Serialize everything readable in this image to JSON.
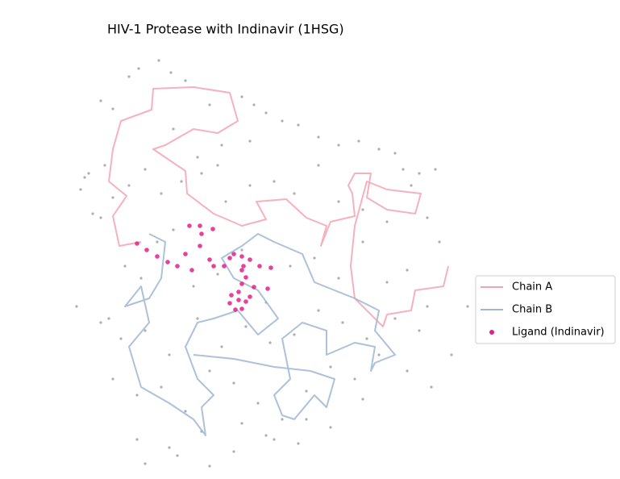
{
  "chart_data": {
    "type": "scatter",
    "title": "HIV-1 Protease with Indinavir (1HSG)",
    "xlim": [
      80,
      590
    ],
    "ylim": [
      10,
      540
    ],
    "legend": "right",
    "atoms": {
      "color": "#8c8c8c",
      "x": [
        197,
        172,
        212,
        140,
        110,
        125,
        160,
        230,
        260,
        300,
        315,
        330,
        350,
        370,
        395,
        420,
        445,
        470,
        490,
        500,
        520,
        540,
        105,
        100,
        130,
        115,
        125,
        140,
        160,
        180,
        200,
        225,
        250,
        280,
        310,
        340,
        365,
        395,
        420,
        450,
        480,
        510,
        530,
        545,
        95,
        135,
        155,
        175,
        195,
        215,
        240,
        270,
        300,
        330,
        360,
        390,
        420,
        450,
        480,
        505,
        530,
        125,
        150,
        180,
        210,
        245,
        275,
        305,
        335,
        365,
        395,
        425,
        455,
        490,
        520,
        560,
        580,
        140,
        170,
        200,
        230,
        260,
        290,
        320,
        350,
        380,
        410,
        440,
        470,
        505,
        535,
        170,
        210,
        250,
        290,
        330,
        370,
        410,
        450,
        180,
        220,
        260,
        300,
        340,
        380,
        275,
        270,
        215,
        245,
        310
      ],
      "y": [
        525,
        515,
        510,
        465,
        385,
        475,
        505,
        500,
        470,
        480,
        470,
        460,
        450,
        445,
        430,
        420,
        425,
        415,
        410,
        390,
        385,
        390,
        380,
        365,
        395,
        335,
        330,
        355,
        370,
        390,
        360,
        375,
        385,
        350,
        370,
        375,
        360,
        395,
        350,
        340,
        325,
        370,
        330,
        300,
        220,
        205,
        270,
        255,
        300,
        315,
        245,
        260,
        290,
        225,
        270,
        280,
        255,
        300,
        250,
        265,
        220,
        200,
        180,
        190,
        160,
        205,
        170,
        195,
        175,
        185,
        215,
        200,
        180,
        205,
        190,
        160,
        220,
        130,
        110,
        120,
        90,
        140,
        125,
        100,
        80,
        115,
        145,
        130,
        160,
        140,
        120,
        55,
        45,
        65,
        40,
        60,
        50,
        70,
        105,
        25,
        35,
        22,
        75,
        55,
        80,
        420,
        395,
        440,
        405,
        425
      ]
    },
    "series": [
      {
        "name": "Chain A",
        "color": "#f4a3b3",
        "style": "line",
        "x": [
          175,
          148,
          140,
          157,
          135,
          140,
          150,
          188,
          190,
          240,
          285,
          295,
          270,
          240,
          205,
          190,
          230,
          232,
          265,
          300,
          330,
          318,
          355,
          380,
          405,
          398,
          410,
          440,
          437,
          432,
          440,
          460,
          455,
          480,
          515,
          522,
          480,
          455,
          440,
          435,
          440,
          475,
          480,
          510,
          515,
          550,
          556
        ],
        "y": [
          300,
          295,
          332,
          357,
          375,
          415,
          450,
          464,
          490,
          492,
          485,
          450,
          435,
          440,
          420,
          415,
          388,
          360,
          335,
          320,
          328,
          350,
          353,
          330,
          320,
          295,
          325,
          332,
          360,
          370,
          385,
          385,
          355,
          340,
          335,
          360,
          365,
          375,
          320,
          270,
          230,
          195,
          210,
          215,
          240,
          245,
          270
        ]
      },
      {
        "name": "Chain B",
        "color": "#9fb6d3",
        "style": "line",
        "x": [
          185,
          205,
          200,
          185,
          155,
          175,
          185,
          160,
          175,
          210,
          240,
          255,
          250,
          265,
          245,
          230,
          245,
          265,
          295,
          320,
          345,
          320,
          290,
          275,
          300,
          320,
          340,
          375,
          390,
          440,
          470,
          465,
          490,
          465,
          460,
          465,
          440,
          405,
          405,
          375,
          350,
          360,
          340,
          350,
          365,
          390,
          405,
          415,
          385,
          340,
          290,
          240
        ],
        "y": [
          310,
          300,
          255,
          230,
          220,
          245,
          200,
          170,
          120,
          100,
          80,
          60,
          95,
          110,
          130,
          170,
          200,
          205,
          215,
          185,
          205,
          240,
          255,
          280,
          295,
          310,
          300,
          285,
          250,
          230,
          215,
          190,
          160,
          150,
          140,
          170,
          175,
          160,
          190,
          200,
          180,
          130,
          110,
          85,
          80,
          110,
          95,
          130,
          140,
          145,
          155,
          160
        ]
      },
      {
        "name": "Ligand (Indinavir)",
        "color": "#e0218a",
        "style": "scatter",
        "x": [
          170,
          182,
          195,
          208,
          230,
          238,
          248,
          250,
          248,
          264,
          235,
          260,
          278,
          285,
          290,
          300,
          310,
          302,
          322,
          336,
          300,
          305,
          300,
          315,
          332,
          296,
          287,
          296,
          285,
          292,
          300,
          310,
          305,
          220,
          265
        ],
        "y": [
          298,
          290,
          282,
          275,
          285,
          265,
          295,
          310,
          320,
          316,
          320,
          278,
          270,
          280,
          285,
          282,
          278,
          270,
          270,
          268,
          265,
          256,
          248,
          244,
          242,
          238,
          234,
          228,
          224,
          216,
          217,
          232,
          226,
          270,
          270
        ]
      }
    ]
  }
}
